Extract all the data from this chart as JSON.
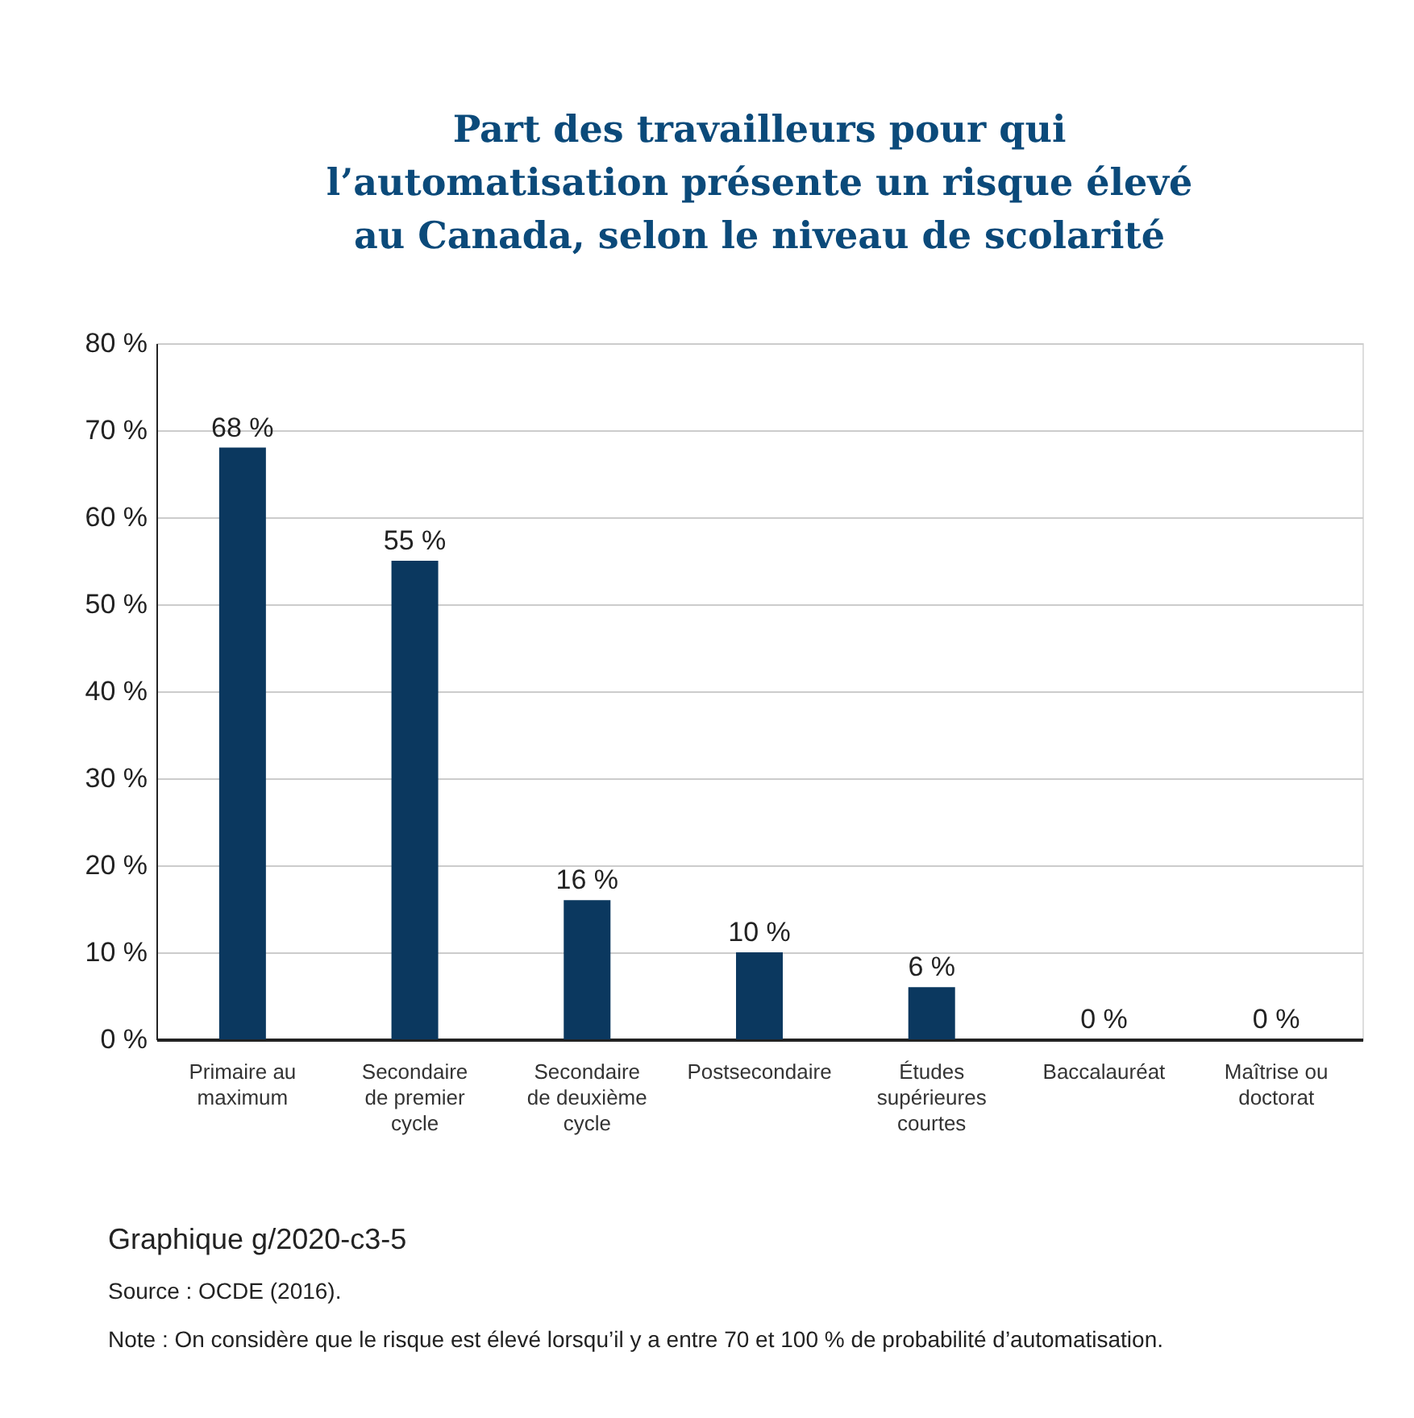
{
  "chart_data": {
    "type": "bar",
    "title": "Part des travailleurs pour qui l’automatisation présente un risque élevé au Canada, selon le niveau de scolarité",
    "categories": [
      "Primaire au maximum",
      "Secondaire de premier cycle",
      "Secondaire de deuxième cycle",
      "Postsecondaire",
      "Études supérieures courtes",
      "Baccalauréat",
      "Maîtrise ou doctorat"
    ],
    "values": [
      68,
      55,
      16,
      10,
      6,
      0,
      0
    ],
    "value_labels": [
      "68 %",
      "55 %",
      "16 %",
      "10 %",
      "6 %",
      "0 %",
      "0 %"
    ],
    "color": "#0b385f",
    "ylim": [
      0,
      80
    ],
    "yticks": [
      {
        "value": 0,
        "label": "0 %"
      },
      {
        "value": 10,
        "label": "10 %"
      },
      {
        "value": 20,
        "label": "20 %"
      },
      {
        "value": 30,
        "label": "30 %"
      },
      {
        "value": 40,
        "label": "40 %"
      },
      {
        "value": 50,
        "label": "50 %"
      },
      {
        "value": 60,
        "label": "60 %"
      },
      {
        "value": 70,
        "label": "70 %"
      },
      {
        "value": 80,
        "label": "80 %"
      }
    ],
    "grid": "y",
    "annotations": [
      "Graphique g/2020-c3-5",
      "Source : OCDE (2016).",
      "Note : On considère que le risque est élevé lorsqu’il y a entre 70 et 100 % de probabilité d’automatisation."
    ]
  }
}
